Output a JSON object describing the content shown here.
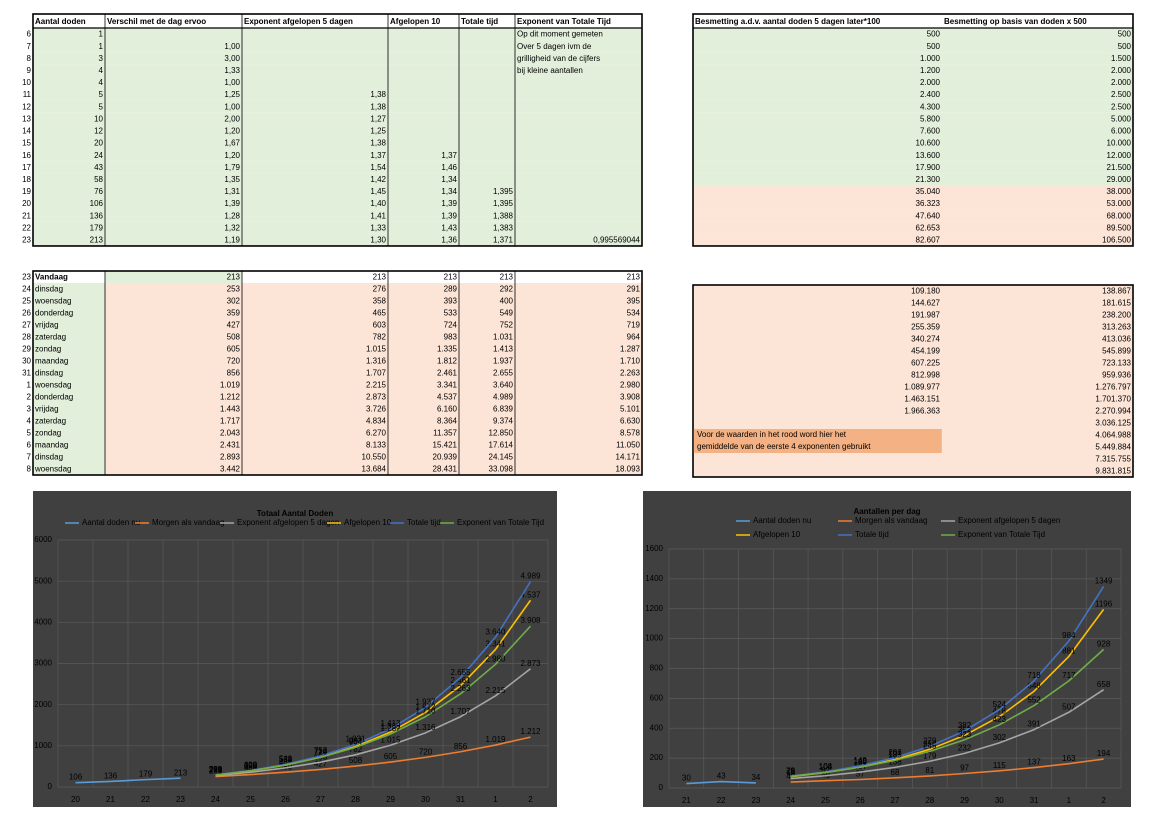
{
  "left_top_table": {
    "headers": [
      "Aantal doden",
      "Verschil met de dag ervoo",
      "Exponent afgelopen 5 dagen",
      "Afgelopen 10",
      "Totale tijd",
      "Exponent van Totale Tijd"
    ],
    "rows": [
      {
        "row": "6",
        "cells": [
          "1",
          null,
          null,
          null,
          null,
          "Op dit moment gemeten"
        ]
      },
      {
        "row": "7",
        "cells": [
          "1",
          "1,00",
          null,
          null,
          null,
          "Over 5 dagen ivm de"
        ]
      },
      {
        "row": "8",
        "cells": [
          "3",
          "3,00",
          null,
          null,
          null,
          "grilligheid van de cijfers"
        ]
      },
      {
        "row": "9",
        "cells": [
          "4",
          "1,33",
          null,
          null,
          null,
          "bij kleine aantallen"
        ]
      },
      {
        "row": "10",
        "cells": [
          "4",
          "1,00",
          null,
          null,
          null,
          null
        ]
      },
      {
        "row": "11",
        "cells": [
          "5",
          "1,25",
          "1,38",
          null,
          null,
          null
        ]
      },
      {
        "row": "12",
        "cells": [
          "5",
          "1,00",
          "1,38",
          null,
          null,
          null
        ]
      },
      {
        "row": "13",
        "cells": [
          "10",
          "2,00",
          "1,27",
          null,
          null,
          null
        ]
      },
      {
        "row": "14",
        "cells": [
          "12",
          "1,20",
          "1,25",
          null,
          null,
          null
        ]
      },
      {
        "row": "15",
        "cells": [
          "20",
          "1,67",
          "1,38",
          null,
          null,
          null
        ]
      },
      {
        "row": "16",
        "cells": [
          "24",
          "1,20",
          "1,37",
          "1,37",
          null,
          null
        ]
      },
      {
        "row": "17",
        "cells": [
          "43",
          "1,79",
          "1,54",
          "1,46",
          null,
          null
        ]
      },
      {
        "row": "18",
        "cells": [
          "58",
          "1,35",
          "1,42",
          "1,34",
          null,
          null
        ]
      },
      {
        "row": "19",
        "cells": [
          "76",
          "1,31",
          "1,45",
          "1,34",
          "1,395",
          null
        ]
      },
      {
        "row": "20",
        "cells": [
          "106",
          "1,39",
          "1,40",
          "1,39",
          "1,395",
          null
        ]
      },
      {
        "row": "21",
        "cells": [
          "136",
          "1,28",
          "1,41",
          "1,39",
          "1,388",
          null
        ]
      },
      {
        "row": "22",
        "cells": [
          "179",
          "1,32",
          "1,33",
          "1,43",
          "1,383",
          null
        ]
      },
      {
        "row": "23",
        "cells": [
          "213",
          "1,19",
          "1,30",
          "1,36",
          "1,371",
          "0,995569044"
        ]
      }
    ]
  },
  "right_top_table": {
    "headers": [
      "Besmetting a.d.v. aantal doden 5 dagen later*100",
      "Besmetting op basis van doden x 500"
    ],
    "rows": [
      {
        "cells": [
          "500",
          "500"
        ]
      },
      {
        "cells": [
          "500",
          "500"
        ]
      },
      {
        "cells": [
          "1.000",
          "1.500"
        ]
      },
      {
        "cells": [
          "1.200",
          "2.000"
        ]
      },
      {
        "cells": [
          "2.000",
          "2.000"
        ]
      },
      {
        "cells": [
          "2.400",
          "2.500"
        ]
      },
      {
        "cells": [
          "4.300",
          "2.500"
        ]
      },
      {
        "cells": [
          "5.800",
          "5.000"
        ]
      },
      {
        "cells": [
          "7.600",
          "6.000"
        ]
      },
      {
        "cells": [
          "10.600",
          "10.000"
        ]
      },
      {
        "cells": [
          "13.600",
          "12.000"
        ]
      },
      {
        "cells": [
          "17.900",
          "21.500"
        ]
      },
      {
        "cells": [
          "21.300",
          "29.000"
        ]
      },
      {
        "cells": [
          "35.040",
          "38.000"
        ]
      },
      {
        "cells": [
          "36.323",
          "53.000"
        ]
      },
      {
        "cells": [
          "47.640",
          "68.000"
        ]
      },
      {
        "cells": [
          "62.653",
          "89.500"
        ]
      },
      {
        "cells": [
          "82.607",
          "106.500"
        ]
      }
    ]
  },
  "left_bottom_table": {
    "rows": [
      {
        "row": "23",
        "cells": [
          "Vandaag",
          "213",
          "213",
          "213",
          "213",
          "213"
        ]
      },
      {
        "row": "24",
        "cells": [
          "dinsdag",
          "253",
          "276",
          "289",
          "292",
          "291"
        ]
      },
      {
        "row": "25",
        "cells": [
          "woensdag",
          "302",
          "358",
          "393",
          "400",
          "395"
        ]
      },
      {
        "row": "26",
        "cells": [
          "donderdag",
          "359",
          "465",
          "533",
          "549",
          "534"
        ]
      },
      {
        "row": "27",
        "cells": [
          "vrijdag",
          "427",
          "603",
          "724",
          "752",
          "719"
        ]
      },
      {
        "row": "28",
        "cells": [
          "zaterdag",
          "508",
          "782",
          "983",
          "1.031",
          "964"
        ]
      },
      {
        "row": "29",
        "cells": [
          "zondag",
          "605",
          "1.015",
          "1.335",
          "1.413",
          "1.287"
        ]
      },
      {
        "row": "30",
        "cells": [
          "maandag",
          "720",
          "1.316",
          "1.812",
          "1.937",
          "1.710"
        ]
      },
      {
        "row": "31",
        "cells": [
          "dinsdag",
          "856",
          "1.707",
          "2.461",
          "2.655",
          "2.263"
        ]
      },
      {
        "row": "1",
        "cells": [
          "woensdag",
          "1.019",
          "2.215",
          "3.341",
          "3.640",
          "2.980"
        ]
      },
      {
        "row": "2",
        "cells": [
          "donderdag",
          "1.212",
          "2.873",
          "4.537",
          "4.989",
          "3.908"
        ]
      },
      {
        "row": "3",
        "cells": [
          "vrijdag",
          "1.443",
          "3.726",
          "6.160",
          "6.839",
          "5.101"
        ]
      },
      {
        "row": "4",
        "cells": [
          "zaterdag",
          "1.717",
          "4.834",
          "8.364",
          "9.374",
          "6.630"
        ]
      },
      {
        "row": "5",
        "cells": [
          "zondag",
          "2.043",
          "6.270",
          "11.357",
          "12.850",
          "8.578"
        ]
      },
      {
        "row": "6",
        "cells": [
          "maandag",
          "2.431",
          "8.133",
          "15.421",
          "17.614",
          "11.050"
        ]
      },
      {
        "row": "7",
        "cells": [
          "dinsdag",
          "2.893",
          "10.550",
          "20.939",
          "24.145",
          "14.171"
        ]
      },
      {
        "row": "8",
        "cells": [
          "woensdag",
          "3.442",
          "13.684",
          "28.431",
          "33.098",
          "18.093"
        ]
      }
    ]
  },
  "right_bottom_table": {
    "rows": [
      {
        "cells": [
          "109.180",
          "138.867"
        ]
      },
      {
        "cells": [
          "144.627",
          "181.615"
        ]
      },
      {
        "cells": [
          "191.987",
          "238.200"
        ]
      },
      {
        "cells": [
          "255.359",
          "313.263"
        ]
      },
      {
        "cells": [
          "340.274",
          "413.036"
        ]
      },
      {
        "cells": [
          "454.199",
          "545.899"
        ]
      },
      {
        "cells": [
          "607.225",
          "723.133"
        ]
      },
      {
        "cells": [
          "812.998",
          "959.936"
        ]
      },
      {
        "cells": [
          "1.089.977",
          "1.276.797"
        ]
      },
      {
        "cells": [
          "1.463.151",
          "1.701.370"
        ]
      },
      {
        "cells": [
          "1.966.363",
          "2.270.994"
        ]
      },
      {
        "cells": [
          null,
          "3.036.125"
        ]
      },
      {
        "cells": [
          null,
          "4.064.988"
        ]
      },
      {
        "cells": [
          null,
          "5.449.884"
        ]
      },
      {
        "cells": [
          null,
          "7.315.755"
        ]
      },
      {
        "cells": [
          null,
          "9.831.815"
        ]
      }
    ],
    "note": [
      "Voor de waarden in het rood word hier het",
      "gemiddelde van de eerste 4  exponenten gebruikt"
    ]
  },
  "chart_data": [
    {
      "type": "line",
      "title": "Totaal Aantal Doden",
      "categories": [
        "20",
        "21",
        "22",
        "23",
        "24",
        "25",
        "26",
        "27",
        "28",
        "29",
        "30",
        "31",
        "1",
        "2"
      ],
      "ylim": [
        0,
        6000
      ],
      "yticks": [
        0,
        1000,
        2000,
        3000,
        4000,
        5000,
        6000
      ],
      "grid": true,
      "series": [
        {
          "name": "Aantal doden nu",
          "color": "#5b9bd5",
          "values": [
            106,
            136,
            179,
            213,
            null,
            null,
            null,
            null,
            null,
            null,
            null,
            null,
            null,
            null
          ]
        },
        {
          "name": "Morgen als vandaag",
          "color": "#ed7d31",
          "values": [
            null,
            null,
            null,
            null,
            253,
            302,
            359,
            427,
            508,
            605,
            720,
            856,
            1019,
            1212
          ],
          "value_labels": [
            null,
            null,
            null,
            null,
            "253",
            "302",
            "359",
            "427",
            "508",
            "605",
            "720",
            "856",
            "1.019",
            "1.212"
          ]
        },
        {
          "name": "Exponent afgelopen 5 dagen",
          "color": "#a5a5a5",
          "values": [
            null,
            null,
            null,
            null,
            276,
            358,
            465,
            603,
            782,
            1015,
            1316,
            1707,
            2215,
            2873
          ],
          "value_labels": [
            null,
            null,
            null,
            null,
            "276",
            "358",
            "465",
            "603",
            "782",
            "1.015",
            "1.316",
            "1.707",
            "2.215",
            "2.873"
          ]
        },
        {
          "name": "Afgelopen 10",
          "color": "#ffc000",
          "values": [
            null,
            null,
            null,
            null,
            289,
            393,
            533,
            724,
            983,
            1335,
            1812,
            2461,
            3341,
            4537
          ],
          "value_labels": [
            null,
            null,
            null,
            null,
            "289",
            "393",
            "533",
            "724",
            "983",
            "1.335",
            "1.812",
            "2.461",
            "3.341",
            "4.537"
          ]
        },
        {
          "name": "Totale tijd",
          "color": "#4472c4",
          "values": [
            null,
            null,
            null,
            null,
            292,
            400,
            549,
            752,
            1031,
            1413,
            1937,
            2655,
            3640,
            4989
          ],
          "value_labels": [
            null,
            null,
            null,
            null,
            "292",
            "400",
            "549",
            "752",
            "1.031",
            "1.413",
            "1.937",
            "2.655",
            "3.640",
            "4.989"
          ]
        },
        {
          "name": "Exponent van Totale Tijd",
          "color": "#70ad47",
          "values": [
            null,
            null,
            null,
            null,
            291,
            395,
            534,
            719,
            964,
            1287,
            1710,
            2263,
            2980,
            3908
          ],
          "value_labels": [
            null,
            null,
            null,
            null,
            "291",
            "395",
            "534",
            "719",
            "964",
            "1.287",
            "1.710",
            "2.263",
            "2.980",
            "3.908"
          ]
        }
      ]
    },
    {
      "type": "line",
      "title": "Aantallen per dag",
      "categories": [
        "21",
        "22",
        "23",
        "24",
        "25",
        "26",
        "27",
        "28",
        "29",
        "30",
        "31",
        "1",
        "2"
      ],
      "ylim": [
        0,
        1600
      ],
      "yticks": [
        0,
        200,
        400,
        600,
        800,
        1000,
        1200,
        1400,
        1600
      ],
      "grid": true,
      "series": [
        {
          "name": "Aantal doden nu",
          "color": "#5b9bd5",
          "values": [
            30,
            43,
            34,
            null,
            null,
            null,
            null,
            null,
            null,
            null,
            null,
            null,
            null
          ]
        },
        {
          "name": "Morgen als vandaag",
          "color": "#ed7d31",
          "values": [
            null,
            null,
            null,
            40,
            49,
            57,
            68,
            81,
            97,
            115,
            137,
            163,
            194
          ]
        },
        {
          "name": "Exponent afgelopen 5 dagen",
          "color": "#a5a5a5",
          "values": [
            null,
            null,
            null,
            63,
            82,
            107,
            138,
            179,
            232,
            302,
            391,
            507,
            658
          ]
        },
        {
          "name": "Afgelopen 10",
          "color": "#ffc000",
          "values": [
            null,
            null,
            null,
            76,
            104,
            140,
            191,
            259,
            352,
            478,
            648,
            881,
            1196
          ]
        },
        {
          "name": "Totale tijd",
          "color": "#4472c4",
          "values": [
            null,
            null,
            null,
            79,
            108,
            149,
            203,
            279,
            382,
            524,
            718,
            984,
            1349
          ]
        },
        {
          "name": "Exponent van Totale Tijd",
          "color": "#70ad47",
          "values": [
            null,
            null,
            null,
            78,
            104,
            139,
            185,
            245,
            323,
            423,
            552,
            717,
            928
          ]
        }
      ]
    }
  ]
}
